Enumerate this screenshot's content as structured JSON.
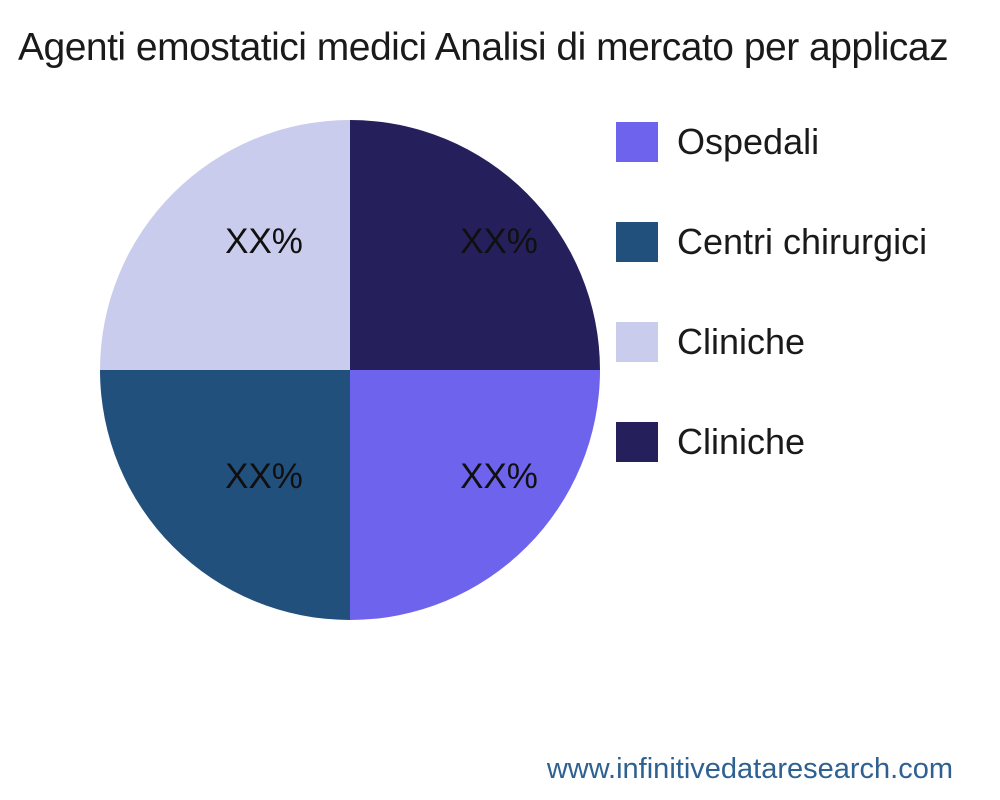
{
  "title": "Agenti emostatici medici Analisi di mercato per applicaz",
  "footer": {
    "website": "www.infinitivedataresearch.com",
    "color": "#2e6191"
  },
  "chart_data": {
    "type": "pie",
    "title": "Agenti emostatici medici Analisi di mercato per applicaz",
    "legend_position": "right",
    "rotation_deg": 90,
    "direction": "clockwise",
    "slices": [
      {
        "legend_label": "Ospedali",
        "value_pct": 25,
        "value_label": "XX%",
        "color": "#6e63ec",
        "quadrant": "bottom-right"
      },
      {
        "legend_label": "Centri chirurgici",
        "value_pct": 25,
        "value_label": "XX%",
        "color": "#22507d",
        "quadrant": "bottom-left"
      },
      {
        "legend_label": "Cliniche",
        "value_pct": 25,
        "value_label": "XX%",
        "color": "#c9ccec",
        "quadrant": "top-left"
      },
      {
        "legend_label": "Cliniche",
        "value_pct": 25,
        "value_label": "XX%",
        "color": "#25205c",
        "quadrant": "top-right"
      }
    ]
  }
}
